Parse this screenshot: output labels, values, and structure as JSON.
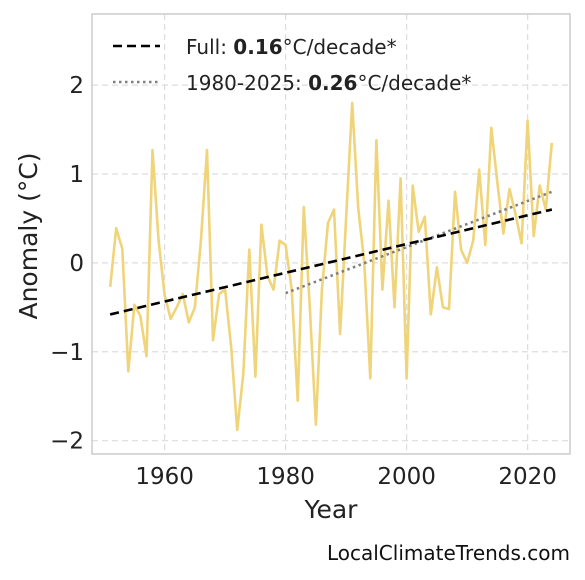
{
  "chart_data": {
    "type": "line",
    "title": "",
    "xlabel": "Year",
    "ylabel": "Anomaly (°C)",
    "xlim": [
      1948,
      2027
    ],
    "ylim": [
      -2.15,
      2.8
    ],
    "xticks": [
      1960,
      1980,
      2000,
      2020
    ],
    "xtick_labels": [
      "1960",
      "1980",
      "2000",
      "2020"
    ],
    "yticks": [
      -2,
      -1,
      0,
      1,
      2
    ],
    "ytick_labels": [
      "−2",
      "−1",
      "0",
      "1",
      "2"
    ],
    "grid": true,
    "legend_position": "top-left",
    "colors": {
      "anomaly": "#f0d47a",
      "trend_full": "#000000",
      "trend_recent": "#808080",
      "grid": "#dddddd",
      "frame": "#cccccc"
    },
    "series": [
      {
        "values_x": [
          1951,
          1952,
          1953,
          1954,
          1955,
          1956,
          1957,
          1958,
          1959,
          1960,
          1961,
          1962,
          1963,
          1964,
          1965,
          1966,
          1967,
          1968,
          1969,
          1970,
          1971,
          1972,
          1973,
          1974,
          1975,
          1976,
          1977,
          1978,
          1979,
          1980,
          1981,
          1982,
          1983,
          1984,
          1985,
          1986,
          1987,
          1988,
          1989,
          1990,
          1991,
          1992,
          1993,
          1994,
          1995,
          1996,
          1997,
          1998,
          1999,
          2000,
          2001,
          2002,
          2003,
          2004,
          2005,
          2006,
          2007,
          2008,
          2009,
          2010,
          2011,
          2012,
          2013,
          2014,
          2015,
          2016,
          2017,
          2018,
          2019,
          2020,
          2021,
          2022,
          2023,
          2024
        ],
        "values_y": [
          -0.27,
          0.39,
          0.16,
          -1.22,
          -0.47,
          -0.6,
          -1.05,
          1.27,
          0.25,
          -0.36,
          -0.63,
          -0.5,
          -0.35,
          -0.67,
          -0.5,
          0.25,
          1.27,
          -0.87,
          -0.35,
          -0.3,
          -0.95,
          -1.88,
          -1.25,
          0.15,
          -1.28,
          0.43,
          -0.15,
          -0.3,
          0.25,
          0.2,
          -0.3,
          -1.55,
          0.63,
          -0.5,
          -1.82,
          -0.3,
          0.45,
          0.6,
          -0.8,
          0.5,
          1.8,
          0.62,
          0.0,
          -1.3,
          1.38,
          -0.3,
          0.7,
          -0.5,
          0.95,
          -1.3,
          0.87,
          0.35,
          0.52,
          -0.58,
          -0.05,
          -0.5,
          -0.52,
          0.8,
          0.15,
          0.0,
          0.25,
          1.05,
          0.2,
          1.52,
          0.9,
          0.33,
          0.83,
          0.55,
          0.22,
          1.6,
          0.3,
          0.87,
          0.6,
          1.35
        ]
      }
    ],
    "trend_full": {
      "x": [
        1951,
        2024
      ],
      "y": [
        -0.58,
        0.6
      ]
    },
    "trend_recent": {
      "x": [
        1980,
        2024
      ],
      "y": [
        -0.34,
        0.8
      ]
    },
    "legend": [
      {
        "prefix": "Full: ",
        "value": "0.16",
        "suffix": "°C/decade*",
        "style": "dashed"
      },
      {
        "prefix": "1980-2025: ",
        "value": "0.26",
        "suffix": "°C/decade*",
        "style": "dotted"
      }
    ]
  },
  "credit": "LocalClimateTrends.com"
}
